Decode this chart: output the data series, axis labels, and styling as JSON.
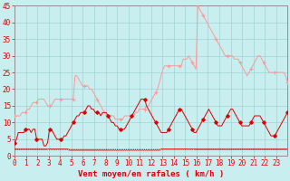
{
  "xlabel": "Vent moyen/en rafales ( km/h )",
  "bg_color": "#c8eef0",
  "grid_color": "#a0d4d4",
  "line_color_avg": "#dd0000",
  "line_color_gust": "#ff9999",
  "ylim": [
    0,
    45
  ],
  "xlim": [
    0,
    24
  ],
  "yticks": [
    0,
    5,
    10,
    15,
    20,
    25,
    30,
    35,
    40,
    45
  ],
  "xtick_positions": [
    0,
    1,
    2,
    3,
    4,
    5,
    6,
    7,
    8,
    9,
    10,
    11,
    12,
    13,
    14,
    15,
    16,
    17,
    18,
    19,
    20,
    21,
    22,
    23
  ],
  "xtick_labels": [
    "0",
    "1",
    "2",
    "3",
    "4",
    "5",
    "6",
    "7",
    "8",
    "9",
    "10",
    "11",
    "12",
    "13",
    "14",
    "15",
    "16",
    "17",
    "18",
    "19",
    "20",
    "21",
    "22",
    "23"
  ],
  "avg_y": [
    4,
    5,
    7,
    7,
    7,
    7,
    8,
    8,
    8,
    7,
    8,
    8,
    5,
    5,
    5,
    5,
    3,
    3,
    4,
    8,
    8,
    7,
    6,
    5,
    5,
    5,
    5,
    6,
    6,
    7,
    8,
    9,
    10,
    11,
    12,
    12,
    13,
    13,
    13,
    14,
    15,
    15,
    14,
    14,
    13,
    13,
    13,
    12,
    13,
    13,
    13,
    12,
    11,
    10,
    10,
    9,
    9,
    8,
    8,
    8,
    8,
    9,
    10,
    11,
    12,
    13,
    14,
    15,
    16,
    17,
    17,
    17,
    15,
    14,
    13,
    12,
    11,
    10,
    9,
    8,
    7,
    7,
    7,
    7,
    8,
    9,
    10,
    11,
    12,
    13,
    14,
    14,
    13,
    12,
    11,
    10,
    9,
    8,
    7,
    7,
    8,
    9,
    10,
    11,
    12,
    13,
    14,
    13,
    12,
    11,
    10,
    9,
    9,
    9,
    10,
    11,
    12,
    13,
    14,
    14,
    13,
    12,
    11,
    10,
    9,
    9,
    9,
    9,
    9,
    10,
    11,
    12,
    12,
    12,
    12,
    11,
    10,
    9,
    8,
    7,
    6,
    6,
    6,
    7,
    8,
    9,
    10,
    11,
    12,
    13
  ],
  "gust_y": [
    12,
    12,
    12,
    12,
    13,
    13,
    13,
    14,
    14,
    15,
    16,
    16,
    16,
    17,
    17,
    17,
    17,
    16,
    15,
    15,
    15,
    16,
    17,
    17,
    17,
    17,
    17,
    17,
    17,
    17,
    17,
    17,
    17,
    24,
    24,
    23,
    22,
    21,
    21,
    21,
    21,
    20,
    20,
    19,
    18,
    17,
    16,
    15,
    14,
    13,
    12,
    12,
    12,
    12,
    12,
    11,
    11,
    11,
    11,
    11,
    12,
    12,
    12,
    12,
    12,
    12,
    13,
    13,
    14,
    14,
    14,
    14,
    15,
    15,
    16,
    17,
    18,
    19,
    20,
    22,
    24,
    26,
    27,
    27,
    27,
    27,
    27,
    27,
    27,
    27,
    27,
    27,
    29,
    29,
    29,
    30,
    29,
    28,
    27,
    26,
    45,
    44,
    43,
    42,
    41,
    40,
    39,
    38,
    37,
    36,
    35,
    34,
    33,
    32,
    31,
    30,
    30,
    30,
    30,
    30,
    29,
    29,
    29,
    28,
    27,
    26,
    25,
    24,
    25,
    26,
    27,
    28,
    29,
    30,
    30,
    29,
    28,
    27,
    26,
    25,
    25,
    25,
    25,
    25,
    25,
    25,
    25,
    25,
    24,
    22
  ],
  "wind_dir_angles": [
    270,
    270,
    270,
    270,
    270,
    270,
    270,
    270,
    270,
    270,
    270,
    270,
    270,
    270,
    270,
    270,
    270,
    270,
    270,
    225,
    225,
    225,
    225,
    225,
    225,
    225,
    225,
    225,
    225,
    225,
    180,
    180,
    180,
    180,
    180,
    180,
    180,
    180,
    180,
    180,
    180,
    180,
    180,
    180,
    180,
    180,
    180,
    180,
    180,
    180,
    180,
    180,
    180,
    180,
    180,
    180,
    180,
    180,
    180,
    180,
    180,
    180,
    180,
    180,
    180,
    180,
    180,
    180,
    180,
    180,
    180,
    180,
    180,
    180,
    180,
    180,
    180,
    180,
    180,
    180,
    135,
    135,
    135,
    135,
    135,
    135,
    135,
    135,
    135,
    135,
    135,
    135,
    135,
    135,
    135,
    135,
    135,
    135,
    90,
    90,
    90,
    90,
    90,
    90,
    90,
    90,
    90,
    90,
    90,
    90,
    90,
    90,
    90,
    90,
    90,
    90,
    90,
    90,
    90,
    90,
    90,
    90,
    90,
    90,
    90,
    90,
    90,
    90,
    90,
    90,
    90,
    90,
    90,
    90,
    90,
    90,
    90,
    90,
    90,
    90,
    90,
    90,
    90,
    90,
    90,
    90,
    90,
    90,
    90,
    90
  ]
}
